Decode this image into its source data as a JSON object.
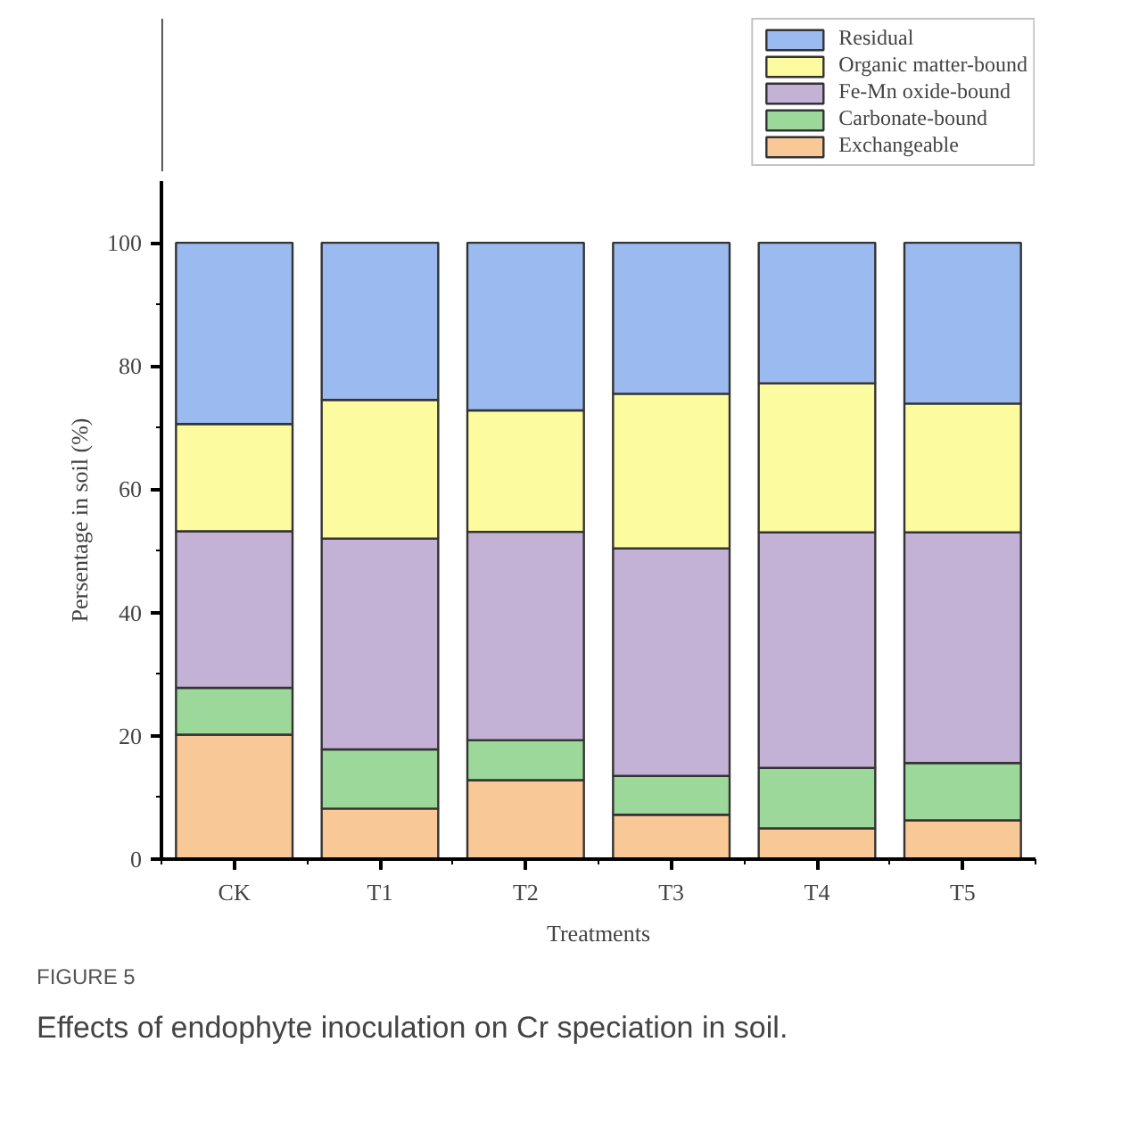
{
  "chart_data": {
    "type": "bar",
    "stacked": true,
    "categories": [
      "CK",
      "T1",
      "T2",
      "T3",
      "T4",
      "T5"
    ],
    "xlabel": "Treatments",
    "ylabel": "Persentage in soil (%)",
    "ylim": [
      0,
      110
    ],
    "yticks": [
      0,
      20,
      40,
      60,
      80,
      100
    ],
    "legend": "top right",
    "grid": false,
    "series": [
      {
        "name": "Exchangeable",
        "color": "#f9c897",
        "values": [
          20.2,
          8.2,
          12.8,
          7.2,
          5.0,
          6.3
        ]
      },
      {
        "name": "Carbonate-bound",
        "color": "#9dd89b",
        "values": [
          7.6,
          9.6,
          6.5,
          6.3,
          9.8,
          9.3
        ]
      },
      {
        "name": "Fe-Mn oxide-bound",
        "color": "#c3b1d6",
        "values": [
          25.4,
          34.2,
          33.8,
          36.9,
          38.2,
          37.4
        ]
      },
      {
        "name": "Organic matter-bound",
        "color": "#fdfb9f",
        "values": [
          17.4,
          22.5,
          19.7,
          25.1,
          24.2,
          20.9
        ]
      },
      {
        "name": "Residual",
        "color": "#9bbbf0",
        "values": [
          29.4,
          25.5,
          27.2,
          24.5,
          22.8,
          26.1
        ]
      }
    ],
    "annotations": [
      "FIGURE 5",
      "Effects of endophyte inoculation on Cr speciation in soil."
    ]
  }
}
